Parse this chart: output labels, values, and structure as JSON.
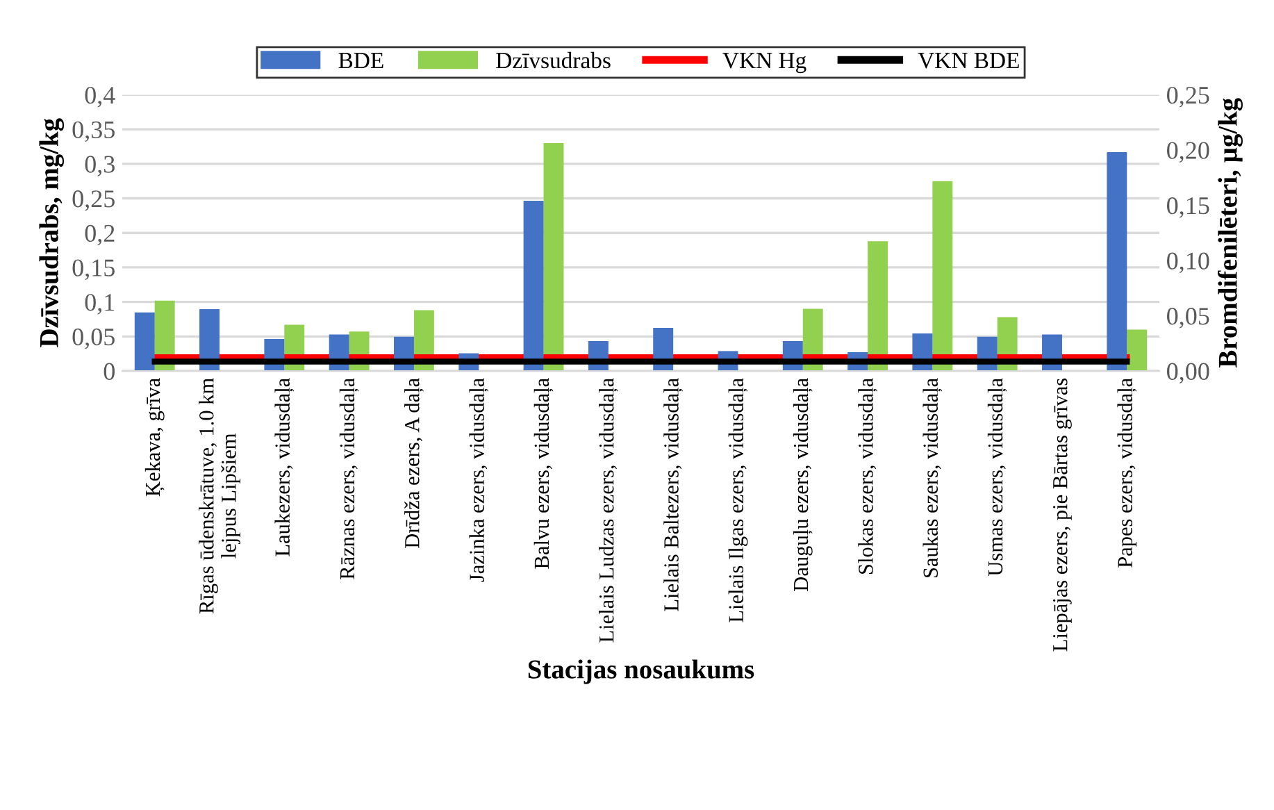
{
  "chart_data": {
    "type": "bar",
    "xlabel": "Stacijas nosaukums",
    "ylabel": "Dzīvsudrabs, mg/kg",
    "y2label": "Bromdifenilēteri, µg/kg",
    "categories": [
      "Ķekava, grīva",
      "Rīgas ūdenskrātuve, 1.0 km\nlejpus Lipšiem",
      "Laukezers, vidusdaļa",
      "Rāznas ezers, vidusdaļa",
      "Drīdža ezers, A daļa",
      "Jazinka ezers, vidusdaļa",
      "Balvu ezers, vidusdaļa",
      "Lielais Ludzas ezers, vidusdaļa",
      "Lielais Baltezers, vidusdaļa",
      "Lielais Ilgas ezers, vidusdaļa",
      "Dauguļu ezers, vidusdaļa",
      "Slokas ezers, vidusdaļa",
      "Saukas ezers, vidusdaļa",
      "Usmas ezers, vidusdaļa",
      "Liepājas ezers, pie Bārtas grīvas",
      "Papes ezers, vidusdaļa"
    ],
    "series": [
      {
        "name": "BDE",
        "color": "#4472c4",
        "axis": "y2",
        "values": [
          0.053,
          0.056,
          0.029,
          0.033,
          0.031,
          0.016,
          0.154,
          0.027,
          0.039,
          0.018,
          0.027,
          0.017,
          0.034,
          0.031,
          0.033,
          0.198
        ]
      },
      {
        "name": "Dzīvsudrabs",
        "color": "#92d050",
        "values": [
          0.102,
          null,
          0.067,
          0.057,
          0.088,
          null,
          0.33,
          null,
          null,
          null,
          0.09,
          0.188,
          0.275,
          0.078,
          null,
          0.06
        ]
      },
      {
        "name": "VKN Hg",
        "type": "line",
        "color": "#ff0000",
        "values": [
          0.02,
          0.02,
          0.02,
          0.02,
          0.02,
          0.02,
          0.02,
          0.02,
          0.02,
          0.02,
          0.02,
          0.02,
          0.02,
          0.02,
          0.02,
          0.02
        ]
      },
      {
        "name": "VKN BDE",
        "type": "line",
        "color": "#000000",
        "axis": "y2",
        "values": [
          0.0085,
          0.0085,
          0.0085,
          0.0085,
          0.0085,
          0.0085,
          0.0085,
          0.0085,
          0.0085,
          0.0085,
          0.0085,
          0.0085,
          0.0085,
          0.0085,
          0.0085,
          0.0085
        ]
      }
    ],
    "ylim": [
      0,
      0.4
    ],
    "yticks": [
      0,
      {
        "value": 0.05,
        "label": "0,05"
      },
      {
        "value": 0.1,
        "label": "0,1"
      },
      {
        "value": 0.15,
        "label": "0,15"
      },
      {
        "value": 0.2,
        "label": "0,2"
      },
      {
        "value": 0.25,
        "label": "0,25"
      },
      {
        "value": 0.3,
        "label": "0,3"
      },
      {
        "value": 0.35,
        "label": "0,35"
      },
      {
        "value": 0.4,
        "label": "0,4"
      }
    ],
    "y2lim": [
      0,
      0.25
    ],
    "y2ticks": [
      {
        "value": 0,
        "label": "0,00"
      },
      {
        "value": 0.05,
        "label": "0,05"
      },
      {
        "value": 0.1,
        "label": "0,10"
      },
      {
        "value": 0.15,
        "label": "0,15"
      },
      {
        "value": 0.2,
        "label": "0,20"
      },
      {
        "value": 0.25,
        "label": "0,25"
      }
    ],
    "grid": "y",
    "legend": "top"
  }
}
